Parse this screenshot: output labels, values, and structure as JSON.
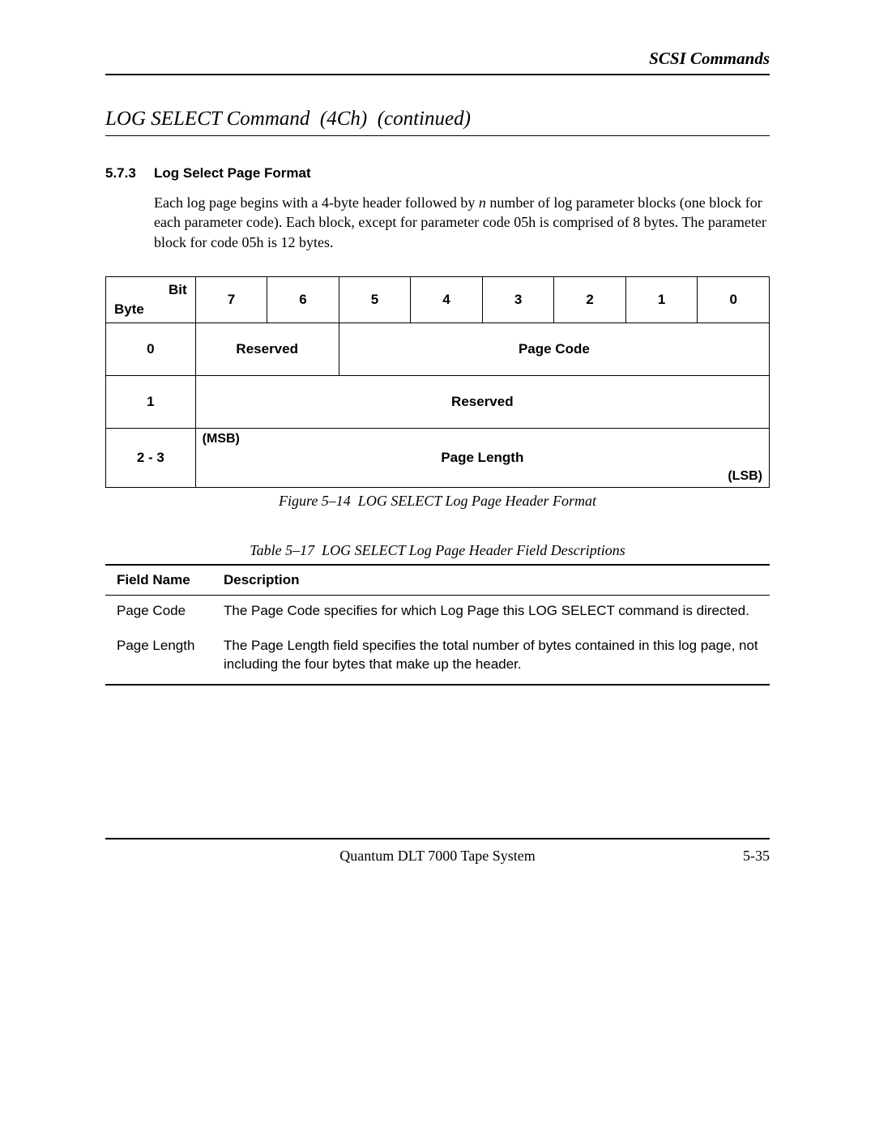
{
  "header": {
    "chapter": "SCSI Commands"
  },
  "section": {
    "title": "LOG SELECT Command  (4Ch)  (continued)"
  },
  "subsection": {
    "number": "5.7.3",
    "title": "Log Select Page Format",
    "body_pre": "Each log page begins with a 4-byte header followed by ",
    "body_var": "n",
    "body_post": " number of log parameter blocks (one block for each parameter code). Each block, except for parameter code 05h is comprised of 8 bytes. The parameter block for code 05h is 12 bytes."
  },
  "bit_table": {
    "corner_top": "Bit",
    "corner_bottom": "Byte",
    "bits": [
      "7",
      "6",
      "5",
      "4",
      "3",
      "2",
      "1",
      "0"
    ],
    "rows": [
      {
        "byte": "0",
        "spans": [
          {
            "colspan": 2,
            "text": "Reserved"
          },
          {
            "colspan": 6,
            "text": "Page Code"
          }
        ]
      },
      {
        "byte": "1",
        "spans": [
          {
            "colspan": 8,
            "text": "Reserved"
          }
        ]
      },
      {
        "byte": "2 - 3",
        "spans": [
          {
            "colspan": 8,
            "text": "Page Length",
            "msb": "(MSB)",
            "lsb": "(LSB)"
          }
        ]
      }
    ]
  },
  "figure_caption": "Figure 5–14  LOG SELECT Log Page Header Format",
  "table_caption": "Table 5–17  LOG SELECT Log Page Header Field Descriptions",
  "desc_table": {
    "headers": [
      "Field Name",
      "Description"
    ],
    "rows": [
      {
        "field": "Page Code",
        "desc": "The Page Code specifies for which Log Page this LOG SELECT command is directed."
      },
      {
        "field": "Page Length",
        "desc": "The Page Length field specifies the total number of bytes contained in this log page, not including the four bytes that make up the header."
      }
    ]
  },
  "footer": {
    "center": "Quantum DLT 7000 Tape System",
    "right": "5-35"
  }
}
